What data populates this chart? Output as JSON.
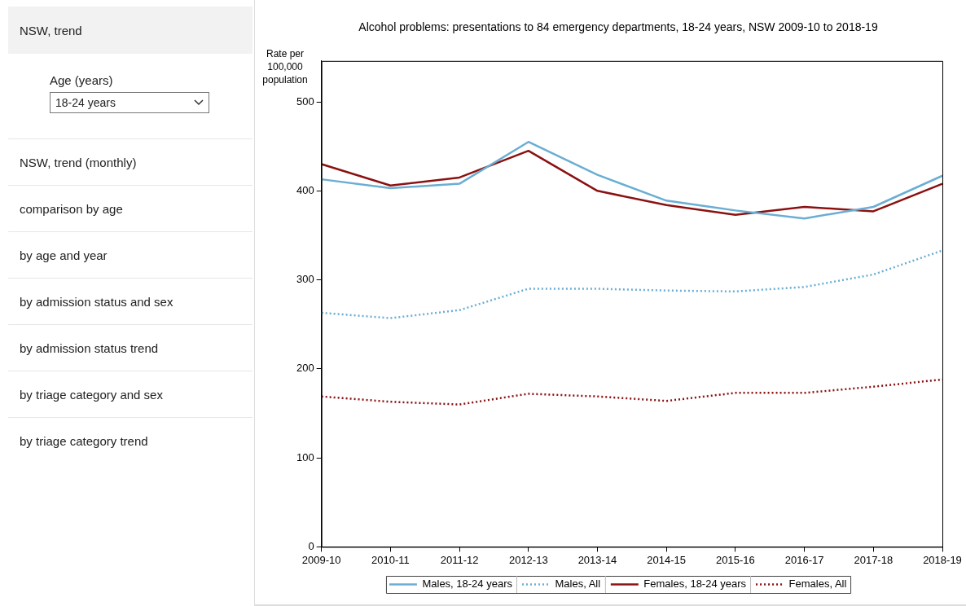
{
  "chart_data": [
    {
      "type": "other",
      "title": "NSW, trend",
      "annotations": [
        "Age (years)",
        "18-24 years",
        "NSW, trend (monthly)",
        "comparison by age",
        "by age and year",
        "by admission status and sex",
        "by admission status trend",
        "by triage category and sex",
        "by triage category trend"
      ]
    },
    {
      "type": "line",
      "title": "Alcohol problems: presentations to 84 emergency departments, 18-24 years, NSW 2009-10 to 2018-19",
      "ylabel": "Rate per 100,000 population",
      "categories": [
        "2009-10",
        "2010-11",
        "2011-12",
        "2012-13",
        "2013-14",
        "2014-15",
        "2015-16",
        "2016-17",
        "2017-18",
        "2018-19"
      ],
      "series": [
        {
          "name": "Males, 18-24 years",
          "color": "#6aaed3",
          "line_style": "solid",
          "values": [
            413,
            403,
            408,
            455,
            418,
            389,
            378,
            369,
            382,
            417
          ]
        },
        {
          "name": "Males, All",
          "color": "#6aaed3",
          "line_style": "dotted",
          "values": [
            263,
            257,
            266,
            290,
            290,
            288,
            287,
            292,
            306,
            333
          ]
        },
        {
          "name": "Females, 18-24 years",
          "color": "#8b1111",
          "line_style": "solid",
          "values": [
            430,
            406,
            415,
            445,
            400,
            384,
            373,
            382,
            377,
            408
          ]
        },
        {
          "name": "Females, All",
          "color": "#8b1111",
          "line_style": "dotted",
          "values": [
            169,
            163,
            160,
            172,
            169,
            164,
            173,
            173,
            180,
            188
          ]
        }
      ],
      "ylim": [
        0,
        546
      ],
      "yticks": [
        0,
        100,
        200,
        300,
        400,
        500
      ],
      "grid": false,
      "legend": "bottom",
      "marker": "none"
    }
  ]
}
